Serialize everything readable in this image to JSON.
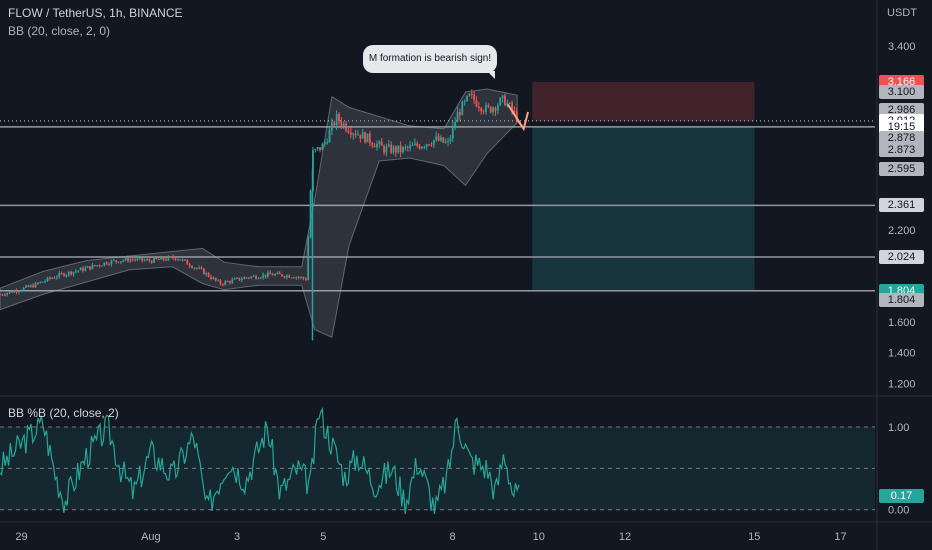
{
  "header": {
    "symbol": "FLOW / TetherUS, 1h, BINANCE",
    "indicator": "BB (20, close, 2, 0)",
    "sub_indicator": "BB %B (20, close, 2)",
    "currency": "USDT"
  },
  "annotation": {
    "text": "M formation is bearish sign!"
  },
  "colors": {
    "background": "#131722",
    "up": "#26a69a",
    "down": "#ef5350",
    "band": "#b2b5be",
    "stop": "#ef5350",
    "target": "#26a69a",
    "percent_b": "#26a69a"
  },
  "chart_data": [
    {
      "type": "candlestick",
      "title": "FLOW / TetherUS, 1h, BINANCE",
      "x_ticks": [
        {
          "label": "29",
          "day": 0
        },
        {
          "label": "Aug",
          "day": 3
        },
        {
          "label": "3",
          "day": 5
        },
        {
          "label": "5",
          "day": 7
        },
        {
          "label": "8",
          "day": 10
        },
        {
          "label": "10",
          "day": 12
        },
        {
          "label": "12",
          "day": 14
        },
        {
          "label": "15",
          "day": 17
        },
        {
          "label": "17",
          "day": 19
        }
      ],
      "xlim": [
        -0.5,
        19.8
      ],
      "y_ticks": [
        1.2,
        1.4,
        1.6,
        2.2,
        3.4
      ],
      "ylim": [
        1.13,
        3.57
      ],
      "series": [
        {
          "name": "price path",
          "points": [
            [
              -0.5,
              1.78
            ],
            [
              0.2,
              1.83
            ],
            [
              0.8,
              1.9
            ],
            [
              1.5,
              1.95
            ],
            [
              2.0,
              1.99
            ],
            [
              2.5,
              2.01
            ],
            [
              3.0,
              2.0
            ],
            [
              3.6,
              2.02
            ],
            [
              4.2,
              1.93
            ],
            [
              4.6,
              1.85
            ],
            [
              5.2,
              1.89
            ],
            [
              5.8,
              1.91
            ],
            [
              6.3,
              1.9
            ],
            [
              6.6,
              1.88
            ],
            [
              6.75,
              2.7
            ],
            [
              7.0,
              2.75
            ],
            [
              7.3,
              2.93
            ],
            [
              7.6,
              2.86
            ],
            [
              8.0,
              2.8
            ],
            [
              8.4,
              2.73
            ],
            [
              8.8,
              2.72
            ],
            [
              9.3,
              2.76
            ],
            [
              9.6,
              2.79
            ],
            [
              9.9,
              2.76
            ],
            [
              10.1,
              2.95
            ],
            [
              10.4,
              3.07
            ],
            [
              10.8,
              2.98
            ],
            [
              11.2,
              3.05
            ],
            [
              11.5,
              2.93
            ]
          ]
        }
      ],
      "bollinger": {
        "upper": [
          [
            -0.5,
            1.82
          ],
          [
            0.5,
            1.93
          ],
          [
            1.5,
            2.0
          ],
          [
            2.5,
            2.03
          ],
          [
            3.5,
            2.06
          ],
          [
            4.2,
            2.08
          ],
          [
            4.7,
            1.99
          ],
          [
            5.5,
            1.96
          ],
          [
            6.5,
            1.96
          ],
          [
            6.8,
            2.4
          ],
          [
            7.2,
            3.07
          ],
          [
            7.6,
            3.0
          ],
          [
            8.3,
            2.94
          ],
          [
            9.0,
            2.88
          ],
          [
            9.8,
            2.86
          ],
          [
            10.3,
            3.1
          ],
          [
            10.8,
            3.12
          ],
          [
            11.5,
            3.08
          ]
        ],
        "lower": [
          [
            -0.5,
            1.68
          ],
          [
            0.5,
            1.78
          ],
          [
            1.5,
            1.86
          ],
          [
            2.5,
            1.94
          ],
          [
            3.5,
            1.96
          ],
          [
            4.2,
            1.85
          ],
          [
            4.7,
            1.81
          ],
          [
            5.5,
            1.84
          ],
          [
            6.5,
            1.84
          ],
          [
            6.8,
            1.55
          ],
          [
            7.2,
            1.5
          ],
          [
            7.6,
            2.1
          ],
          [
            8.3,
            2.65
          ],
          [
            9.0,
            2.67
          ],
          [
            9.8,
            2.62
          ],
          [
            10.3,
            2.49
          ],
          [
            10.8,
            2.7
          ],
          [
            11.5,
            2.9
          ]
        ]
      },
      "horizontal_lines": [
        2.873,
        2.361,
        2.024,
        1.804
      ],
      "current_price_line": 2.912,
      "position": {
        "type": "short",
        "x_start": 11.85,
        "x_end": 17.0,
        "entry": 2.912,
        "stop": 3.166,
        "target": 1.804,
        "entry_box_top": 3.166,
        "entry_box_bottom": 2.912,
        "target_box_top": 2.878,
        "target_box_bottom": 1.804
      },
      "price_tags": [
        {
          "label": "3.166",
          "value": 3.166,
          "kind": "stop"
        },
        {
          "label": "3.100",
          "value": 3.1,
          "kind": "grey"
        },
        {
          "label": "2.986",
          "value": 2.986,
          "kind": "grey"
        },
        {
          "label": "2.912",
          "value": 2.912,
          "kind": "current"
        },
        {
          "label": "19:15",
          "value": 2.87,
          "kind": "timer"
        },
        {
          "label": "2.878",
          "value": 2.8,
          "kind": "grey"
        },
        {
          "label": "2.873",
          "value": 2.72,
          "kind": "grey"
        },
        {
          "label": "2.595",
          "value": 2.595,
          "kind": "grey"
        },
        {
          "label": "2.361",
          "value": 2.361,
          "kind": "line"
        },
        {
          "label": "2.024",
          "value": 2.024,
          "kind": "line"
        },
        {
          "label": "1.804",
          "value": 1.804,
          "kind": "target"
        },
        {
          "label": "1.804",
          "value": 1.745,
          "kind": "grey"
        }
      ]
    },
    {
      "type": "line",
      "title": "BB %B (20, close, 2)",
      "y_ticks": [
        0.0,
        1.0
      ],
      "ylim": [
        -0.1,
        1.35
      ],
      "guide_lines": [
        0.0,
        0.5,
        1.0
      ],
      "last_value": 0.17,
      "last_label": "0.17",
      "series": [
        {
          "name": "%B",
          "points": [
            [
              -0.5,
              0.5
            ],
            [
              0.0,
              0.8
            ],
            [
              0.5,
              1.05
            ],
            [
              0.8,
              0.4
            ],
            [
              1.0,
              0.1
            ],
            [
              1.5,
              0.65
            ],
            [
              2.0,
              1.0
            ],
            [
              2.3,
              0.5
            ],
            [
              2.6,
              0.2
            ],
            [
              3.0,
              0.7
            ],
            [
              3.5,
              0.4
            ],
            [
              4.0,
              0.9
            ],
            [
              4.3,
              0.0
            ],
            [
              4.8,
              0.6
            ],
            [
              5.2,
              0.35
            ],
            [
              5.7,
              1.0
            ],
            [
              6.0,
              0.2
            ],
            [
              6.4,
              0.5
            ],
            [
              6.7,
              0.3
            ],
            [
              6.9,
              1.2
            ],
            [
              7.2,
              0.8
            ],
            [
              7.5,
              0.4
            ],
            [
              7.8,
              0.65
            ],
            [
              8.2,
              0.3
            ],
            [
              8.6,
              0.5
            ],
            [
              8.9,
              0.1
            ],
            [
              9.2,
              0.6
            ],
            [
              9.6,
              0.0
            ],
            [
              9.9,
              0.45
            ],
            [
              10.1,
              1.1
            ],
            [
              10.4,
              0.6
            ],
            [
              10.8,
              0.5
            ],
            [
              11.0,
              0.2
            ],
            [
              11.2,
              0.7
            ],
            [
              11.4,
              0.2
            ],
            [
              11.55,
              0.17
            ]
          ]
        }
      ]
    }
  ]
}
